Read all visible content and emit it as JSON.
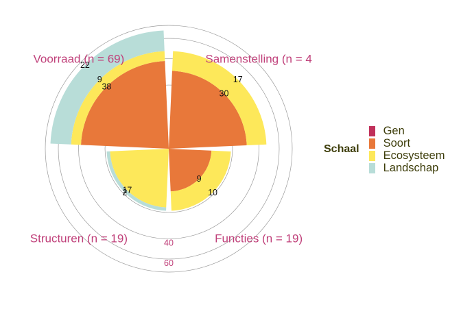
{
  "chart_data": {
    "type": "polar-stacked-bar",
    "categories": [
      "Samenstelling (n = 4",
      "Functies (n = 19)",
      "Structuren (n = 19)",
      "Voorraad (n = 69)"
    ],
    "series": [
      {
        "name": "Gen",
        "color": "#c0305a",
        "values": [
          0,
          0,
          0,
          0
        ]
      },
      {
        "name": "Soort",
        "color": "#e8783a",
        "values": [
          30,
          9,
          0,
          38
        ]
      },
      {
        "name": "Ecosysteem",
        "color": "#fde85a",
        "values": [
          17,
          10,
          17,
          9
        ]
      },
      {
        "name": "Landschap",
        "color": "#b8ddd8",
        "values": [
          0,
          0,
          2,
          22
        ]
      }
    ],
    "value_labels": [
      {
        "category": "Samenstelling (n = 4",
        "series": "Soort",
        "text": "30"
      },
      {
        "category": "Samenstelling (n = 4",
        "series": "Ecosysteem",
        "text": "17"
      },
      {
        "category": "Functies (n = 19)",
        "series": "Soort",
        "text": "9"
      },
      {
        "category": "Functies (n = 19)",
        "series": "Ecosysteem",
        "text": "10"
      },
      {
        "category": "Structuren (n = 19)",
        "series": "Ecosysteem",
        "text": "17"
      },
      {
        "category": "Structuren (n = 19)",
        "series": "Landschap",
        "text": "2"
      },
      {
        "category": "Voorraad (n = 69)",
        "series": "Soort",
        "text": "38"
      },
      {
        "category": "Voorraad (n = 69)",
        "series": "Ecosysteem",
        "text": "9"
      },
      {
        "category": "Voorraad (n = 69)",
        "series": "Landschap",
        "text": "22"
      }
    ],
    "radial_ticks": [
      "40",
      "60"
    ],
    "radial_tick_values": [
      40,
      60
    ],
    "gridline_values": [
      20,
      40,
      60
    ],
    "rmax": 75,
    "scale": "sqrt",
    "legend": {
      "title": "Schaal",
      "position": "right"
    }
  }
}
